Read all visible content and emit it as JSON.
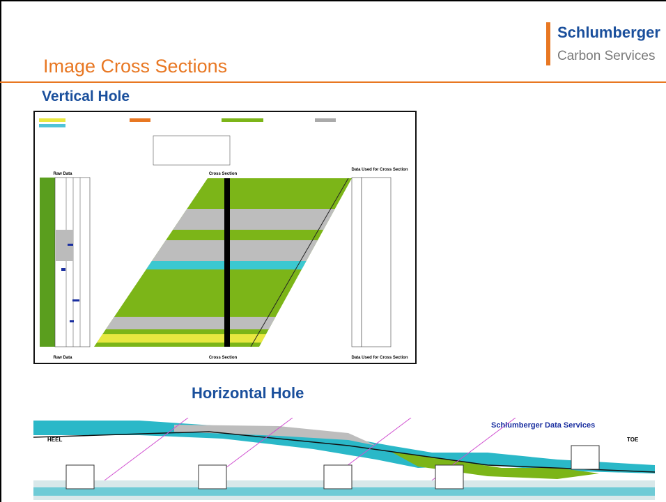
{
  "header": {
    "title": "Image Cross Sections",
    "logo": {
      "name": "Schlumberger",
      "division": "Carbon Services"
    }
  },
  "vertical": {
    "heading": "Vertical Hole",
    "left_track": "Raw Data",
    "center_track": "Cross Section",
    "right_track": "Data Used for Cross Section"
  },
  "horizontal": {
    "heading": "Horizontal Hole",
    "banner": "Schlumberger Data Services",
    "heel": "HEEL",
    "toe": "TOE"
  }
}
